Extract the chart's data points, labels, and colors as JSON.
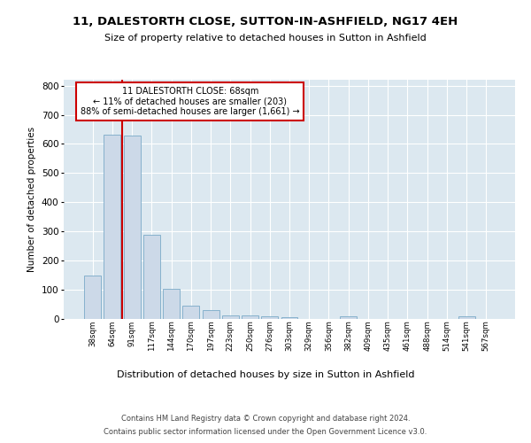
{
  "title1": "11, DALESTORTH CLOSE, SUTTON-IN-ASHFIELD, NG17 4EH",
  "title2": "Size of property relative to detached houses in Sutton in Ashfield",
  "xlabel": "Distribution of detached houses by size in Sutton in Ashfield",
  "ylabel": "Number of detached properties",
  "footer1": "Contains HM Land Registry data © Crown copyright and database right 2024.",
  "footer2": "Contains public sector information licensed under the Open Government Licence v3.0.",
  "annotation_title": "11 DALESTORTH CLOSE: 68sqm",
  "annotation_line2": "← 11% of detached houses are smaller (203)",
  "annotation_line3": "88% of semi-detached houses are larger (1,661) →",
  "bar_color": "#ccd9e8",
  "bar_edge_color": "#7aaac8",
  "vline_color": "#cc0000",
  "categories": [
    "38sqm",
    "64sqm",
    "91sqm",
    "117sqm",
    "144sqm",
    "170sqm",
    "197sqm",
    "223sqm",
    "250sqm",
    "276sqm",
    "303sqm",
    "329sqm",
    "356sqm",
    "382sqm",
    "409sqm",
    "435sqm",
    "461sqm",
    "488sqm",
    "514sqm",
    "541sqm",
    "567sqm"
  ],
  "values": [
    148,
    632,
    628,
    288,
    104,
    47,
    30,
    11,
    11,
    8,
    5,
    0,
    0,
    8,
    0,
    0,
    0,
    0,
    0,
    8,
    0
  ],
  "ylim": [
    0,
    820
  ],
  "yticks": [
    0,
    100,
    200,
    300,
    400,
    500,
    600,
    700,
    800
  ],
  "grid_color": "#ffffff",
  "plot_bg_color": "#dce8f0",
  "fig_bg_color": "#ffffff"
}
